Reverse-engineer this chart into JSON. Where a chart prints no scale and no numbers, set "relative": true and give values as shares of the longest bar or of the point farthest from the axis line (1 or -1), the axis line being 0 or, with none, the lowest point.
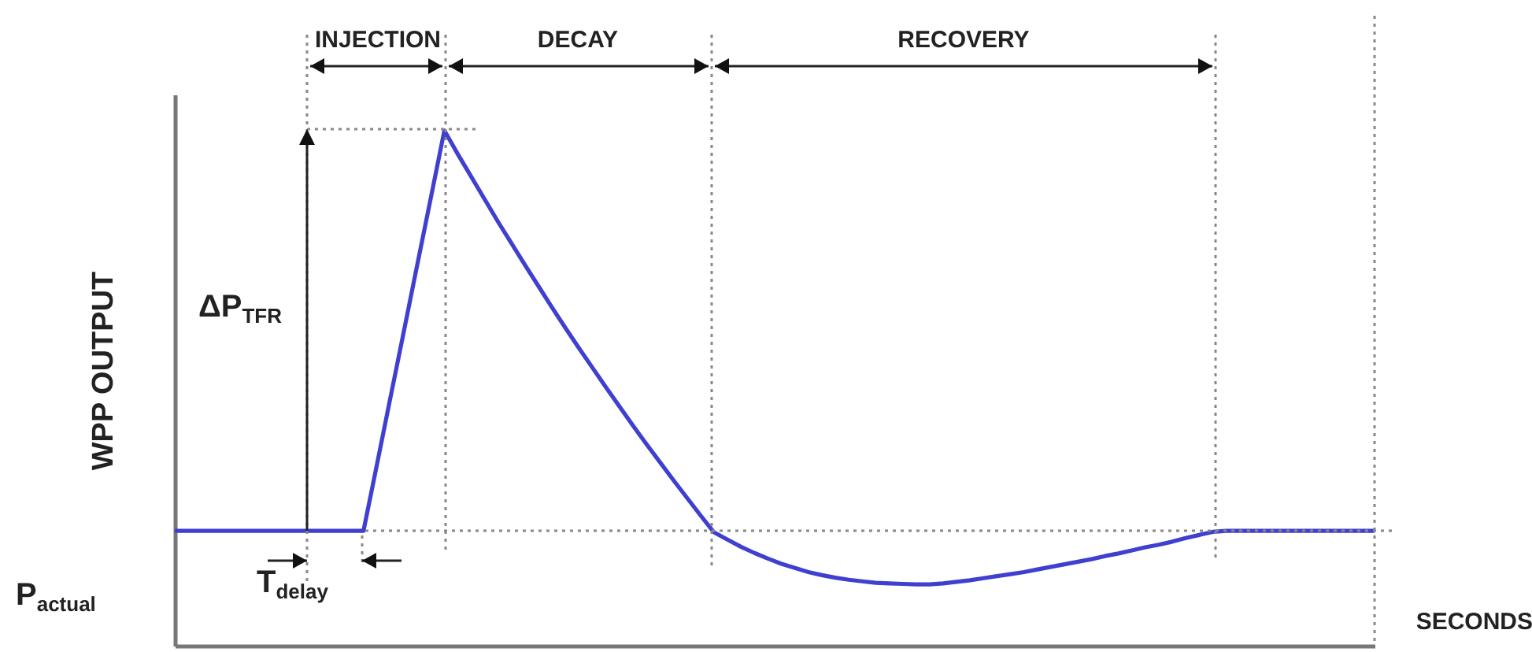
{
  "chart_data": {
    "type": "line",
    "relative": true,
    "ylabel": "WPP OUTPUT",
    "xlabel": "SECONDS",
    "categories": [
      null,
      null,
      null,
      null,
      null,
      null,
      null,
      null,
      null,
      null,
      null,
      null,
      null,
      null,
      null,
      null,
      null,
      null,
      null,
      null,
      null,
      null,
      null,
      null,
      null,
      null,
      null,
      null,
      null,
      null,
      null,
      null,
      null,
      null,
      null,
      null,
      null,
      null,
      null,
      null,
      null,
      null,
      null,
      null,
      null,
      null,
      null,
      null,
      null,
      null,
      null,
      null,
      null,
      null,
      null,
      null,
      null,
      null,
      null,
      null,
      null,
      null,
      null,
      null,
      null,
      null,
      null,
      null,
      null,
      null,
      null,
      null,
      null,
      null,
      null,
      null,
      null,
      null,
      null,
      null,
      null,
      null,
      null,
      null,
      null,
      null,
      null,
      null,
      null,
      null
    ],
    "series": [
      {
        "color": "#3f3fd0",
        "values": [
          0.223,
          0.223,
          0.223,
          0.223,
          0.223,
          0.223,
          0.223,
          0.223,
          0.223,
          0.223,
          0.223,
          0.223,
          0.223,
          0.223,
          0.223,
          0.352,
          0.482,
          0.611,
          0.741,
          0.87,
          1.0,
          0.954,
          0.91,
          0.866,
          0.822,
          0.78,
          0.738,
          0.697,
          0.656,
          0.616,
          0.577,
          0.539,
          0.501,
          0.464,
          0.427,
          0.391,
          0.356,
          0.321,
          0.287,
          0.253,
          0.22,
          0.206,
          0.192,
          0.18,
          0.169,
          0.159,
          0.151,
          0.143,
          0.137,
          0.132,
          0.128,
          0.125,
          0.122,
          0.121,
          0.12,
          0.119,
          0.119,
          0.121,
          0.124,
          0.127,
          0.131,
          0.135,
          0.139,
          0.143,
          0.148,
          0.153,
          0.158,
          0.163,
          0.168,
          0.174,
          0.179,
          0.185,
          0.191,
          0.196,
          0.202,
          0.209,
          0.215,
          0.221,
          0.223,
          0.223,
          0.223,
          0.223,
          0.223,
          0.223,
          0.223,
          0.223,
          0.223,
          0.223,
          0.223,
          0.223
        ]
      }
    ],
    "annotations": [
      "INJECTION",
      "DECAY",
      "RECOVERY",
      "ΔP$_{TFR}$",
      "P$_{actual}$",
      "T$_{delay}$"
    ]
  }
}
